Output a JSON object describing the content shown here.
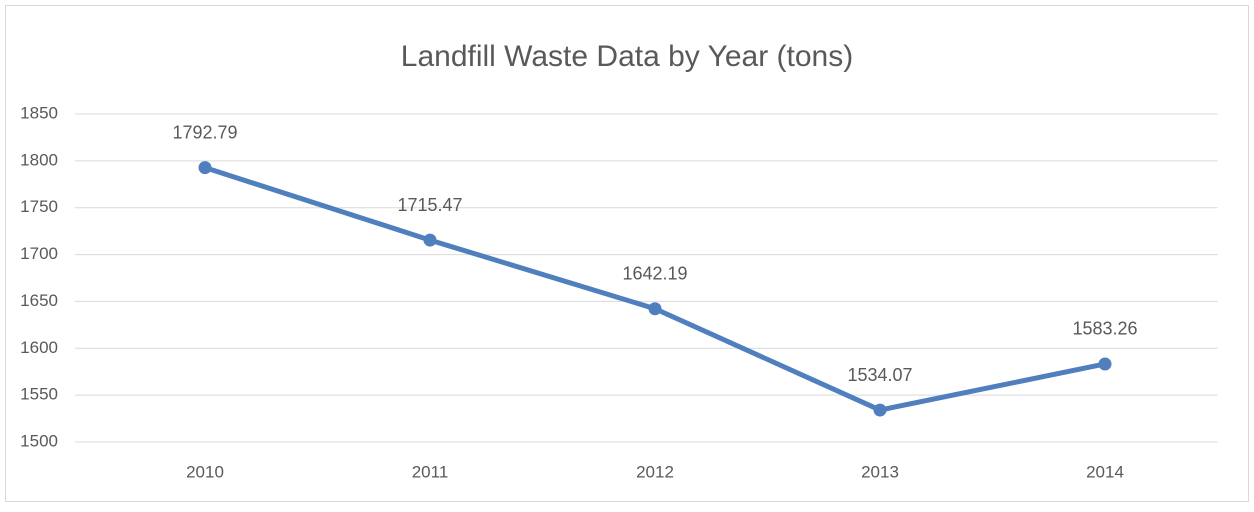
{
  "chart_data": {
    "type": "line",
    "title": "Landfill Waste Data by Year (tons)",
    "categories": [
      "2010",
      "2011",
      "2012",
      "2013",
      "2014"
    ],
    "series": [
      {
        "name": "Landfill Waste",
        "color": "#4f7fbd",
        "values": [
          1792.79,
          1715.47,
          1642.19,
          1534.07,
          1583.26
        ]
      }
    ],
    "ylim": [
      1500,
      1850
    ],
    "yticks": [
      1500,
      1550,
      1600,
      1650,
      1700,
      1750,
      1800,
      1850
    ],
    "grid": true,
    "data_labels": true,
    "markers": true
  }
}
